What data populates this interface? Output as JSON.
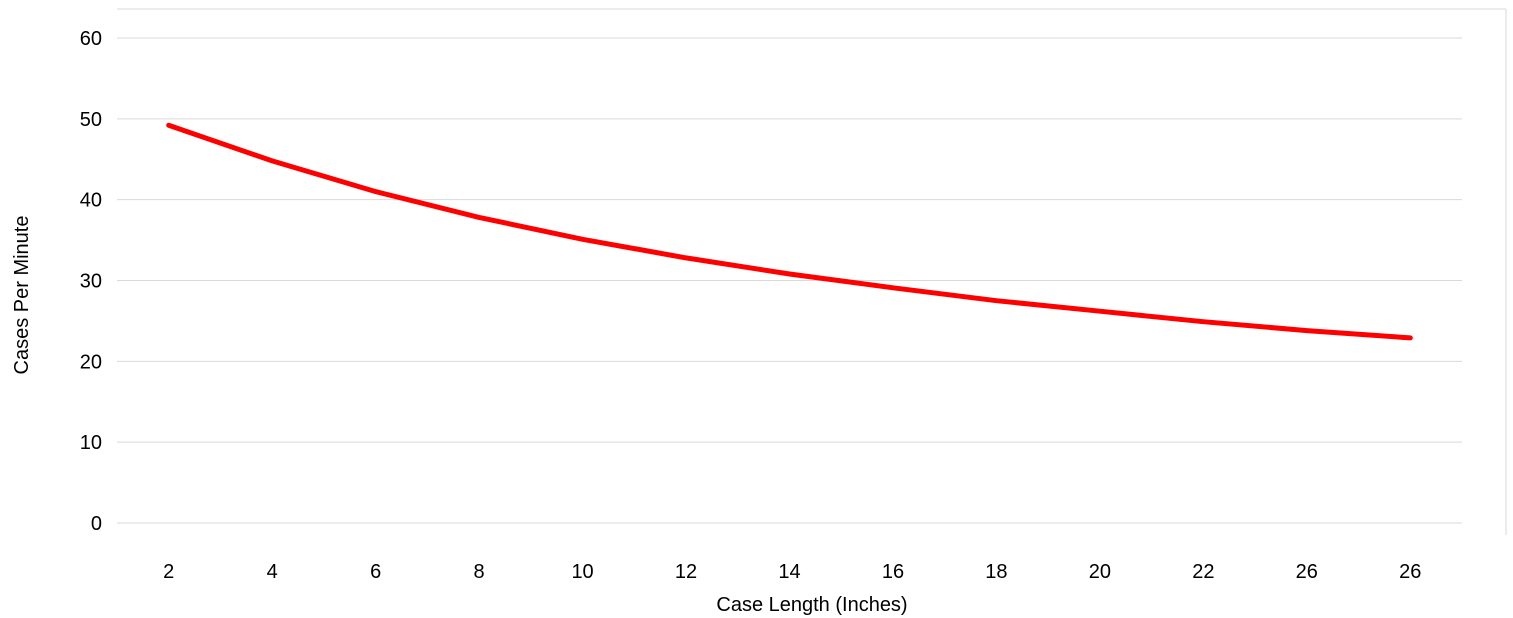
{
  "chart_data": {
    "type": "line",
    "title": "",
    "xlabel": "Case Length (Inches)",
    "ylabel": "Cases Per Minute",
    "categories": [
      "2",
      "4",
      "6",
      "8",
      "10",
      "12",
      "14",
      "16",
      "18",
      "20",
      "22",
      "26",
      "26"
    ],
    "series": [
      {
        "values": [
          49.2,
          44.8,
          41.0,
          37.8,
          35.1,
          32.8,
          30.8,
          29.1,
          27.5,
          26.2,
          24.9,
          23.8,
          22.9
        ],
        "color": "#ff0000"
      }
    ],
    "yticks": [
      "0",
      "10",
      "20",
      "30",
      "40",
      "50",
      "60"
    ],
    "ylim": [
      0,
      60
    ],
    "grid": true,
    "legend": "none"
  }
}
